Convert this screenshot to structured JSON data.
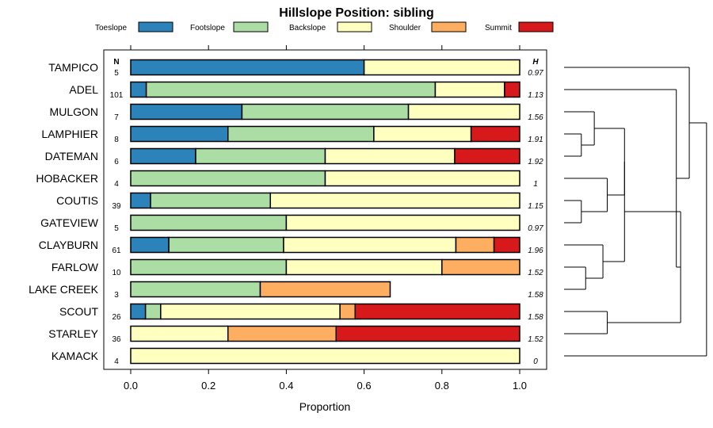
{
  "chart_data": {
    "type": "bar",
    "stacked": true,
    "orientation": "horizontal",
    "title": "Hillslope Position: sibling",
    "xlabel": "Proportion",
    "ylabel": "",
    "xlim": [
      0,
      1
    ],
    "x_ticks": [
      "0.0",
      "0.2",
      "0.4",
      "0.6",
      "0.8",
      "1.0"
    ],
    "legend_position": "top",
    "n_header": "N",
    "h_header": "H",
    "categories": [
      "TAMPICO",
      "ADEL",
      "MULGON",
      "LAMPHIER",
      "DATEMAN",
      "HOBACKER",
      "COUTIS",
      "GATEVIEW",
      "CLAYBURN",
      "FARLOW",
      "LAKE CREEK",
      "SCOUT",
      "STARLEY",
      "KAMACK"
    ],
    "n": [
      "5",
      "101",
      "7",
      "8",
      "6",
      "4",
      "39",
      "5",
      "61",
      "10",
      "3",
      "26",
      "36",
      "4"
    ],
    "h": [
      "0.97",
      "1.13",
      "1.56",
      "1.91",
      "1.92",
      "1",
      "1.15",
      "0.97",
      "1.96",
      "1.52",
      "1.58",
      "1.58",
      "1.52",
      "0"
    ],
    "series": [
      {
        "name": "Toeslope",
        "color": "#2b83ba",
        "values": [
          0.6,
          0.04,
          0.286,
          0.25,
          0.167,
          0,
          0.051,
          0,
          0.098,
          0,
          0,
          0.038,
          0,
          0
        ]
      },
      {
        "name": "Footslope",
        "color": "#abdda4",
        "values": [
          0,
          0.743,
          0.428,
          0.375,
          0.333,
          0.5,
          0.308,
          0.4,
          0.295,
          0.4,
          0.333,
          0.039,
          0,
          0
        ]
      },
      {
        "name": "Backslope",
        "color": "#ffffbf",
        "values": [
          0.4,
          0.178,
          0.286,
          0.25,
          0.333,
          0.5,
          0.641,
          0.6,
          0.443,
          0.4,
          0,
          0.461,
          0.25,
          1
        ]
      },
      {
        "name": "Shoulder",
        "color": "#fdae61",
        "values": [
          0,
          0,
          0,
          0,
          0,
          0,
          0,
          0,
          0.098,
          0.2,
          0.334,
          0.039,
          0.278,
          0
        ]
      },
      {
        "name": "Summit",
        "color": "#d7191c",
        "values": [
          0,
          0.039,
          0,
          0.125,
          0.167,
          0,
          0,
          0,
          0.066,
          0,
          0,
          0.423,
          0.472,
          0
        ]
      }
    ],
    "dendrogram": {
      "leaves": [
        "TAMPICO",
        "ADEL",
        "MULGON",
        "LAMPHIER",
        "DATEMAN",
        "HOBACKER",
        "COUTIS",
        "GATEVIEW",
        "CLAYBURN",
        "FARLOW",
        "LAKE CREEK",
        "SCOUT",
        "STARLEY",
        "KAMACK"
      ],
      "merges": [
        {
          "a": 3,
          "b": 4,
          "h": 0.04
        },
        {
          "a": 6,
          "b": 7,
          "h": 0.04
        },
        {
          "a": 2,
          "b": "m0",
          "h": 0.07
        },
        {
          "a": 5,
          "b": "m1",
          "h": 0.1
        },
        {
          "a": 9,
          "b": 10,
          "h": 0.05
        },
        {
          "a": 8,
          "b": "m4",
          "h": 0.09
        },
        {
          "a": "m2",
          "b": "m3",
          "h": 0.14
        },
        {
          "a": "m6",
          "b": "m5",
          "h": 0.14
        },
        {
          "a": 11,
          "b": 12,
          "h": 0.1
        },
        {
          "a": "m7",
          "b": "m8",
          "h": 0.27
        },
        {
          "a": 1,
          "b": "m9",
          "h": 0.26
        },
        {
          "a": 0,
          "b": "m10",
          "h": 0.29
        },
        {
          "a": "m11",
          "b": 13,
          "h": 0.33
        }
      ]
    }
  }
}
